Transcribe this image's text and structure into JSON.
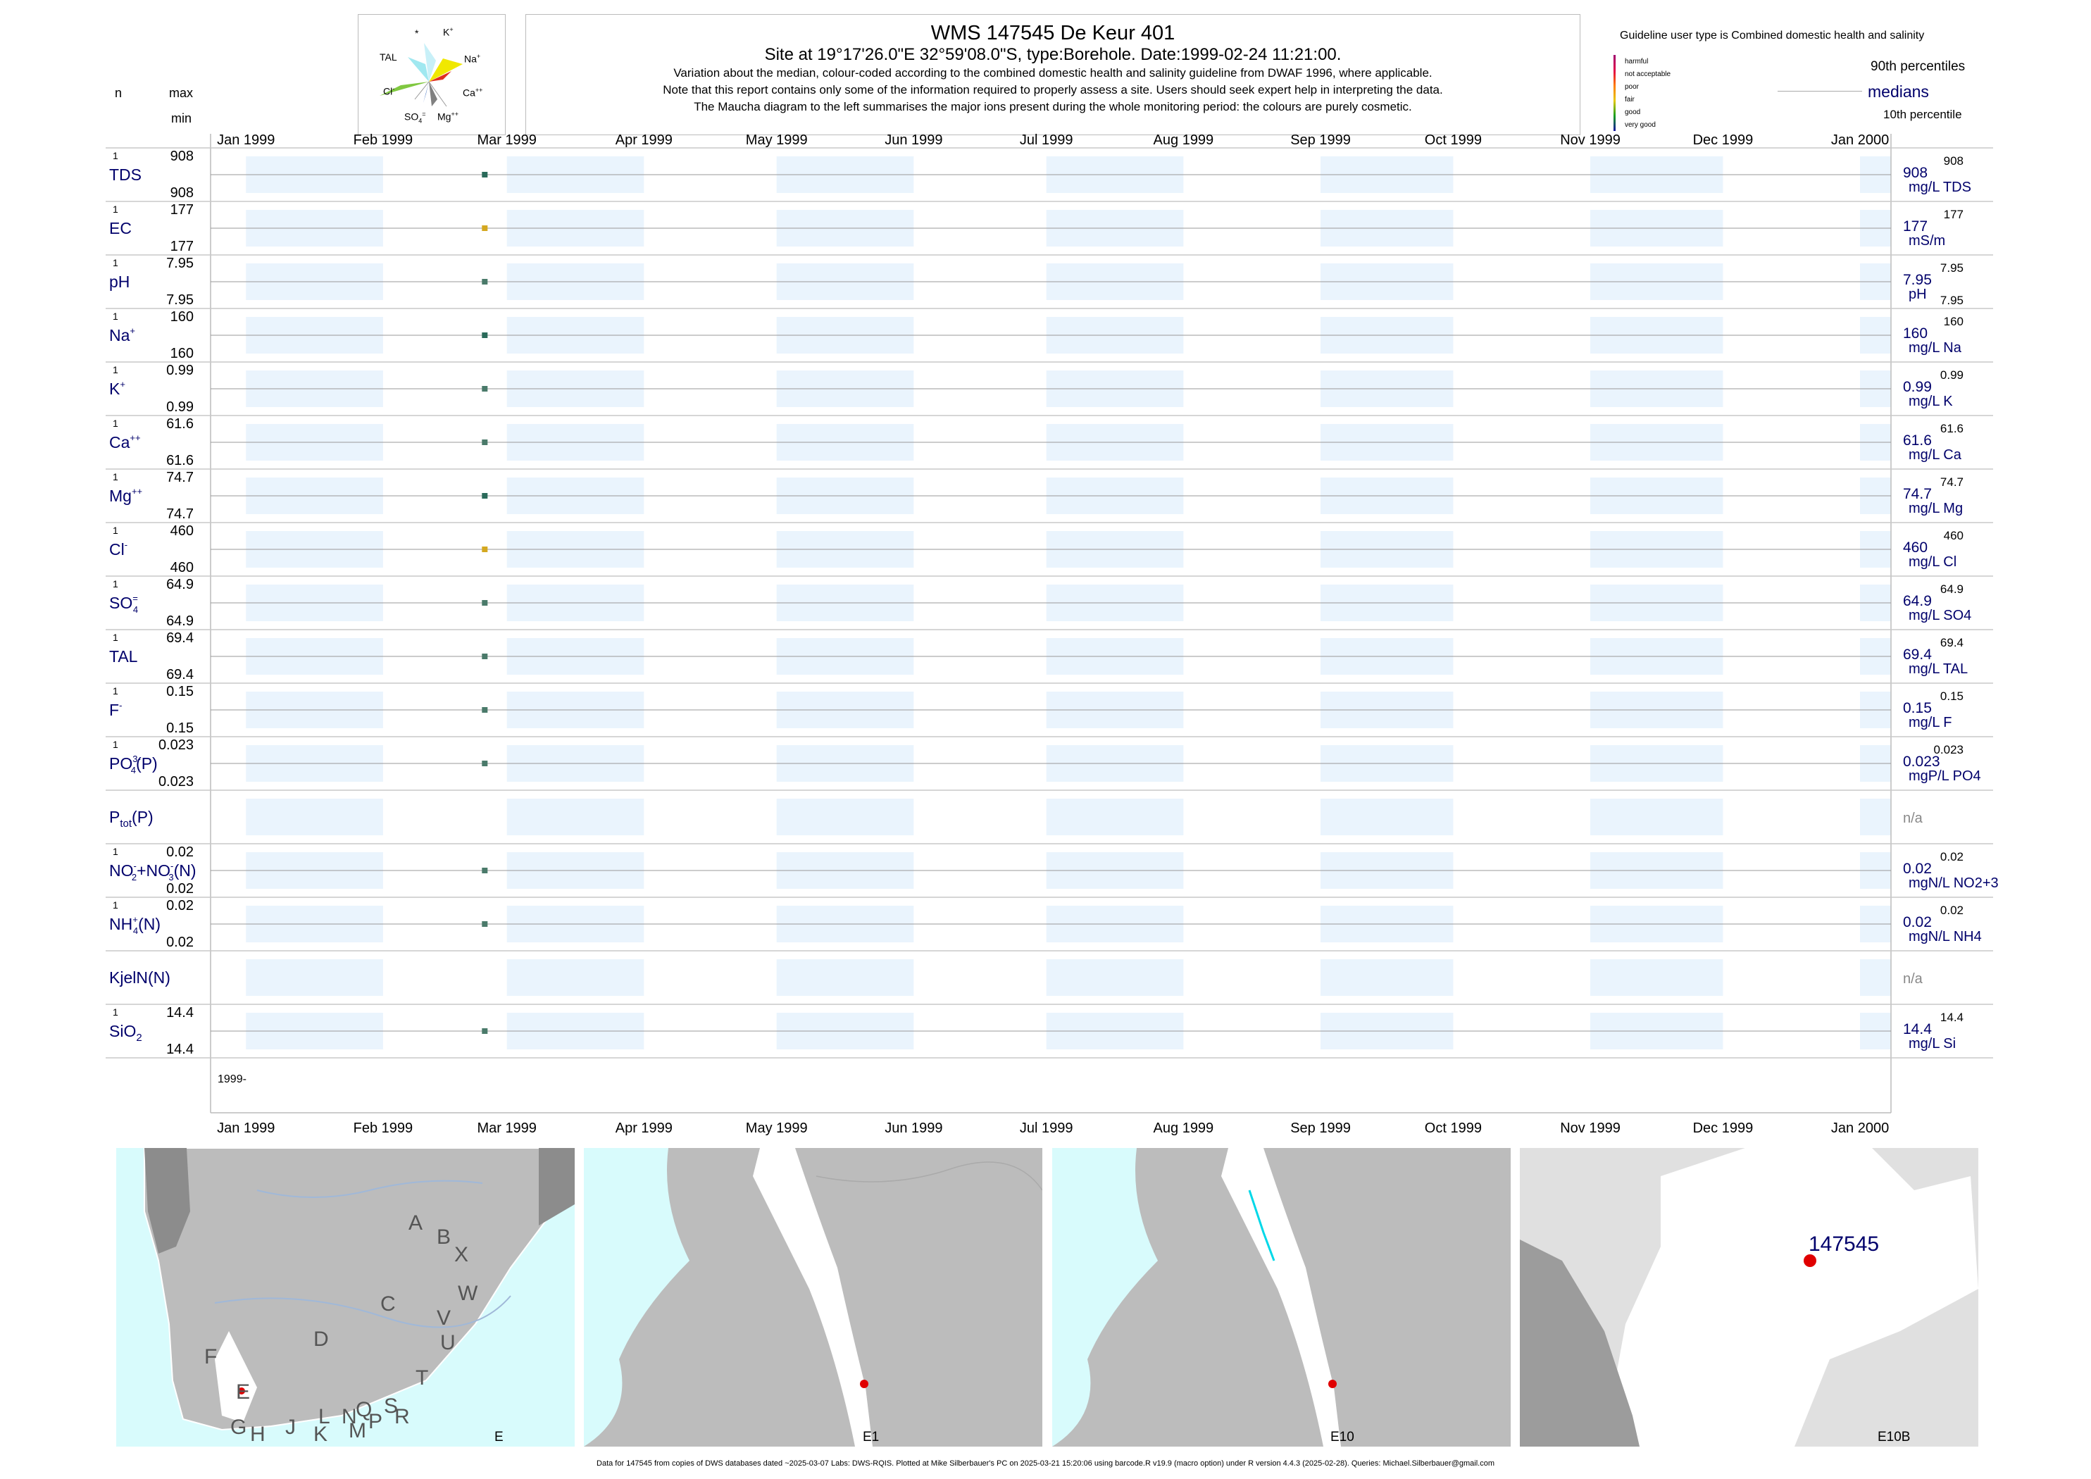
{
  "header": {
    "title": "WMS 147545  De Keur 401",
    "subtitle": "Site at 19°17'26.0\"E 32°59'08.0\"S, type:Borehole. Date:1999-02-24 11:21:00.",
    "notes": [
      "Variation about the median,  colour-coded according to the combined domestic health and salinity guideline from DWAF 1996, where applicable.",
      "Note that this report contains only some of the information required to properly assess a site. Users should seek expert help in interpreting the data.",
      "The Maucha diagram to the left summarises the major ions present during the whole monitoring period: the colours are purely cosmetic."
    ]
  },
  "left_header": {
    "n": "n",
    "max": "max",
    "min": "min"
  },
  "maucha": {
    "labels": {
      "star": "*",
      "k": "K",
      "k_sup": "+",
      "na": "Na",
      "na_sup": "+",
      "ca": "Ca",
      "ca_sup": "++",
      "mg": "Mg",
      "mg_sup": "++",
      "so4": "SO",
      "so4_sub": "4",
      "so4_sup": "=",
      "cl": "Cl",
      "cl_sup": "-",
      "tal": "TAL"
    }
  },
  "legend": {
    "title": "Guideline user type is Combined domestic health and salinity",
    "items": [
      {
        "label": "harmful",
        "color": "#a0006e"
      },
      {
        "label": "not acceptable",
        "color": "#e0004a"
      },
      {
        "label": "poor",
        "color": "#ff7a00"
      },
      {
        "label": "fair",
        "color": "#e6c800"
      },
      {
        "label": "good",
        "color": "#19a01e"
      },
      {
        "label": "very good",
        "color": "#1414a0"
      }
    ],
    "p90": "90th percentiles",
    "medians": "medians",
    "p10": "10th percentile"
  },
  "chart_data": {
    "type": "scatter",
    "x_axis": {
      "ticks": [
        "Jan 1999",
        "Feb 1999",
        "Mar 1999",
        "Apr 1999",
        "May 1999",
        "Jun 1999",
        "Jul 1999",
        "Aug 1999",
        "Sep 1999",
        "Oct 1999",
        "Nov 1999",
        "Dec 1999",
        "Jan 2000"
      ],
      "tick_dates": [
        "1999-01-01",
        "1999-02-01",
        "1999-03-01",
        "1999-04-01",
        "1999-05-01",
        "1999-06-01",
        "1999-07-01",
        "1999-08-01",
        "1999-09-01",
        "1999-10-01",
        "1999-11-01",
        "1999-12-01",
        "2000-01-01"
      ],
      "range": [
        "1998-12-24",
        "2000-01-08"
      ],
      "shaded_months": [
        "1999-01",
        "1999-03",
        "1999-05",
        "1999-07",
        "1999-09",
        "1999-11",
        "2000-01"
      ],
      "year_label": "1999-"
    },
    "sample_date": "1999-02-24",
    "series": [
      {
        "name": "TDS",
        "sup": "",
        "sub": "",
        "n": "1",
        "max": "908",
        "min": "908",
        "median": "908",
        "unit": "mg/L TDS",
        "p90": "908",
        "p10": "",
        "value": 908,
        "color": "#2a6a5a"
      },
      {
        "name": "EC",
        "sup": "",
        "sub": "",
        "n": "1",
        "max": "177",
        "min": "177",
        "median": "177",
        "unit": "mS/m",
        "p90": "177",
        "p10": "",
        "value": 177,
        "color": "#d4a820"
      },
      {
        "name": "pH",
        "sup": "",
        "sub": "",
        "n": "1",
        "max": "7.95",
        "min": "7.95",
        "median": "7.95",
        "unit": "pH",
        "p90": "7.95",
        "p10": "7.95",
        "value": 7.95,
        "color": "#4a7a6a"
      },
      {
        "name": "Na",
        "sup": "+",
        "sub": "",
        "n": "1",
        "max": "160",
        "min": "160",
        "median": "160",
        "unit": "mg/L Na",
        "p90": "160",
        "p10": "",
        "value": 160,
        "color": "#2a6a5a"
      },
      {
        "name": "K",
        "sup": "+",
        "sub": "",
        "n": "1",
        "max": "0.99",
        "min": "0.99",
        "median": "0.99",
        "unit": "mg/L K",
        "p90": "0.99",
        "p10": "",
        "value": 0.99,
        "color": "#4a7a6a"
      },
      {
        "name": "Ca",
        "sup": "++",
        "sub": "",
        "n": "1",
        "max": "61.6",
        "min": "61.6",
        "median": "61.6",
        "unit": "mg/L Ca",
        "p90": "61.6",
        "p10": "",
        "value": 61.6,
        "color": "#4a7a6a"
      },
      {
        "name": "Mg",
        "sup": "++",
        "sub": "",
        "n": "1",
        "max": "74.7",
        "min": "74.7",
        "median": "74.7",
        "unit": "mg/L Mg",
        "p90": "74.7",
        "p10": "",
        "value": 74.7,
        "color": "#2a6a5a"
      },
      {
        "name": "Cl",
        "sup": "-",
        "sub": "",
        "n": "1",
        "max": "460",
        "min": "460",
        "median": "460",
        "unit": "mg/L Cl",
        "p90": "460",
        "p10": "",
        "value": 460,
        "color": "#d4a820"
      },
      {
        "name": "SO",
        "sup": "=",
        "sub": "4",
        "n": "1",
        "max": "64.9",
        "min": "64.9",
        "median": "64.9",
        "unit": "mg/L SO4",
        "p90": "64.9",
        "p10": "",
        "value": 64.9,
        "color": "#4a7a6a"
      },
      {
        "name": "TAL",
        "sup": "",
        "sub": "",
        "n": "1",
        "max": "69.4",
        "min": "69.4",
        "median": "69.4",
        "unit": "mg/L TAL",
        "p90": "69.4",
        "p10": "",
        "value": 69.4,
        "color": "#4a7a6a"
      },
      {
        "name": "F",
        "sup": "-",
        "sub": "",
        "n": "1",
        "max": "0.15",
        "min": "0.15",
        "median": "0.15",
        "unit": "mg/L F",
        "p90": "0.15",
        "p10": "",
        "value": 0.15,
        "color": "#4a7a6a"
      },
      {
        "name": "PO",
        "sup": "3-",
        "sub": "4",
        "suffix": "(P)",
        "n": "1",
        "max": "0.023",
        "min": "0.023",
        "median": "0.023",
        "unit": "mgP/L PO4",
        "p90": "0.023",
        "p10": "",
        "value": 0.023,
        "color": "#4a7a6a"
      },
      {
        "name": "P",
        "sup": "",
        "sub": "tot",
        "suffix": "(P)",
        "n": "",
        "max": "",
        "min": "",
        "median": "n/a",
        "unit": "",
        "p90": "",
        "p10": "",
        "value": null,
        "color": "#888888"
      },
      {
        "name": "NO",
        "sup": "-",
        "sub": "2",
        "suffix": "+NO",
        "suffix_sup": "-",
        "suffix_sub": "3",
        "suffix2": "(N)",
        "n": "1",
        "max": "0.02",
        "min": "0.02",
        "median": "0.02",
        "unit": "mgN/L NO2+3",
        "p90": "0.02",
        "p10": "",
        "value": 0.02,
        "color": "#4a7a6a"
      },
      {
        "name": "NH",
        "sup": "+",
        "sub": "4",
        "suffix": "(N)",
        "n": "1",
        "max": "0.02",
        "min": "0.02",
        "median": "0.02",
        "unit": "mgN/L NH4",
        "p90": "0.02",
        "p10": "",
        "value": 0.02,
        "color": "#4a7a6a"
      },
      {
        "name": "KjelN(N)",
        "sup": "",
        "sub": "",
        "n": "",
        "max": "",
        "min": "",
        "median": "n/a",
        "unit": "",
        "p90": "",
        "p10": "",
        "value": null,
        "color": "#888888"
      },
      {
        "name": "SiO",
        "sup": "",
        "sub": "2",
        "n": "1",
        "max": "14.4",
        "min": "14.4",
        "median": "14.4",
        "unit": "mg/L Si",
        "p90": "14.4",
        "p10": "",
        "value": 14.4,
        "color": "#4a7a6a"
      }
    ]
  },
  "maps": [
    {
      "label": "E",
      "regions": [
        "A",
        "B",
        "X",
        "W",
        "C",
        "V",
        "D",
        "U",
        "T",
        "F",
        "E",
        "S",
        "R",
        "Q",
        "N",
        "P",
        "L",
        "M",
        "J",
        "K",
        "G",
        "H"
      ]
    },
    {
      "label": "E1"
    },
    {
      "label": "E10"
    },
    {
      "label": "E10B",
      "site": "147545"
    }
  ],
  "footer": "Data for 147545 from copies of DWS databases dated ~2025-03-07 Labs: DWS-RQIS. Plotted at Mike Silberbauer's PC on 2025-03-21 15:20:06 using barcode.R v19.9 (macro option) under R version 4.4.3 (2025-02-28). Queries: Michael.Silberbauer@gmail.com"
}
